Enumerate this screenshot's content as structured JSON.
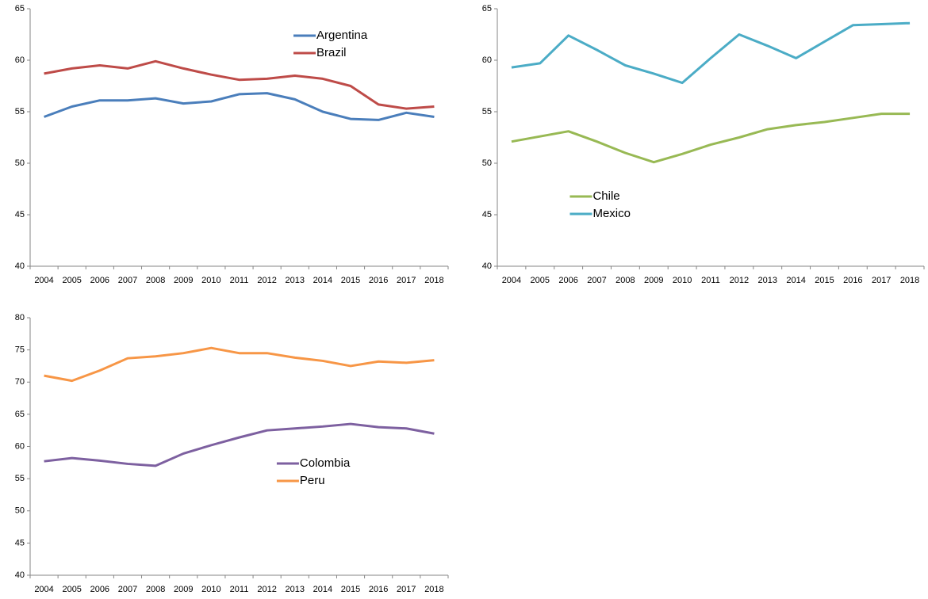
{
  "chart_data": [
    {
      "type": "line",
      "legend": "upper center",
      "categories": [
        "2004",
        "2005",
        "2006",
        "2007",
        "2008",
        "2009",
        "2010",
        "2011",
        "2012",
        "2013",
        "2014",
        "2015",
        "2016",
        "2017",
        "2018"
      ],
      "ylim": [
        40,
        65
      ],
      "yticks": [
        40,
        45,
        50,
        55,
        60,
        65
      ],
      "series": [
        {
          "name": "Argentina",
          "color": "#4a7ebb",
          "values": [
            54.5,
            55.5,
            56.1,
            56.1,
            56.3,
            55.8,
            56.0,
            56.7,
            56.8,
            56.2,
            55.0,
            54.3,
            54.2,
            54.9,
            54.5
          ]
        },
        {
          "name": "Brazil",
          "color": "#be4b48",
          "values": [
            58.7,
            59.2,
            59.5,
            59.2,
            59.9,
            59.2,
            58.6,
            58.1,
            58.2,
            58.5,
            58.2,
            57.5,
            55.7,
            55.3,
            55.5
          ]
        }
      ]
    },
    {
      "type": "line",
      "legend": "lower left",
      "categories": [
        "2004",
        "2005",
        "2006",
        "2007",
        "2008",
        "2009",
        "2010",
        "2011",
        "2012",
        "2013",
        "2014",
        "2015",
        "2016",
        "2017",
        "2018"
      ],
      "ylim": [
        40,
        65
      ],
      "yticks": [
        40,
        45,
        50,
        55,
        60,
        65
      ],
      "series": [
        {
          "name": "Chile",
          "color": "#98b954",
          "values": [
            52.1,
            52.6,
            53.1,
            52.1,
            51.0,
            50.1,
            50.9,
            51.8,
            52.5,
            53.3,
            53.7,
            54.0,
            54.4,
            54.8,
            54.8
          ]
        },
        {
          "name": "Mexico",
          "color": "#4bacc6",
          "values": [
            59.3,
            59.7,
            62.4,
            61.0,
            59.5,
            58.7,
            57.8,
            60.2,
            62.5,
            61.4,
            60.2,
            61.8,
            63.4,
            63.5,
            63.6
          ]
        }
      ]
    },
    {
      "type": "line",
      "legend": "center",
      "categories": [
        "2004",
        "2005",
        "2006",
        "2007",
        "2008",
        "2009",
        "2010",
        "2011",
        "2012",
        "2013",
        "2014",
        "2015",
        "2016",
        "2017",
        "2018"
      ],
      "ylim": [
        40,
        80
      ],
      "yticks": [
        40,
        45,
        50,
        55,
        60,
        65,
        70,
        75,
        80
      ],
      "series": [
        {
          "name": "Colombia",
          "color": "#7d60a0",
          "values": [
            57.7,
            58.2,
            57.8,
            57.3,
            57.0,
            58.9,
            60.2,
            61.4,
            62.5,
            62.8,
            63.1,
            63.5,
            63.0,
            62.8,
            62.0
          ]
        },
        {
          "name": "Peru",
          "color": "#f79646",
          "values": [
            71.0,
            70.2,
            71.8,
            73.7,
            74.0,
            74.5,
            75.3,
            74.5,
            74.5,
            73.8,
            73.3,
            72.5,
            73.2,
            73.0,
            73.4
          ]
        }
      ]
    }
  ]
}
